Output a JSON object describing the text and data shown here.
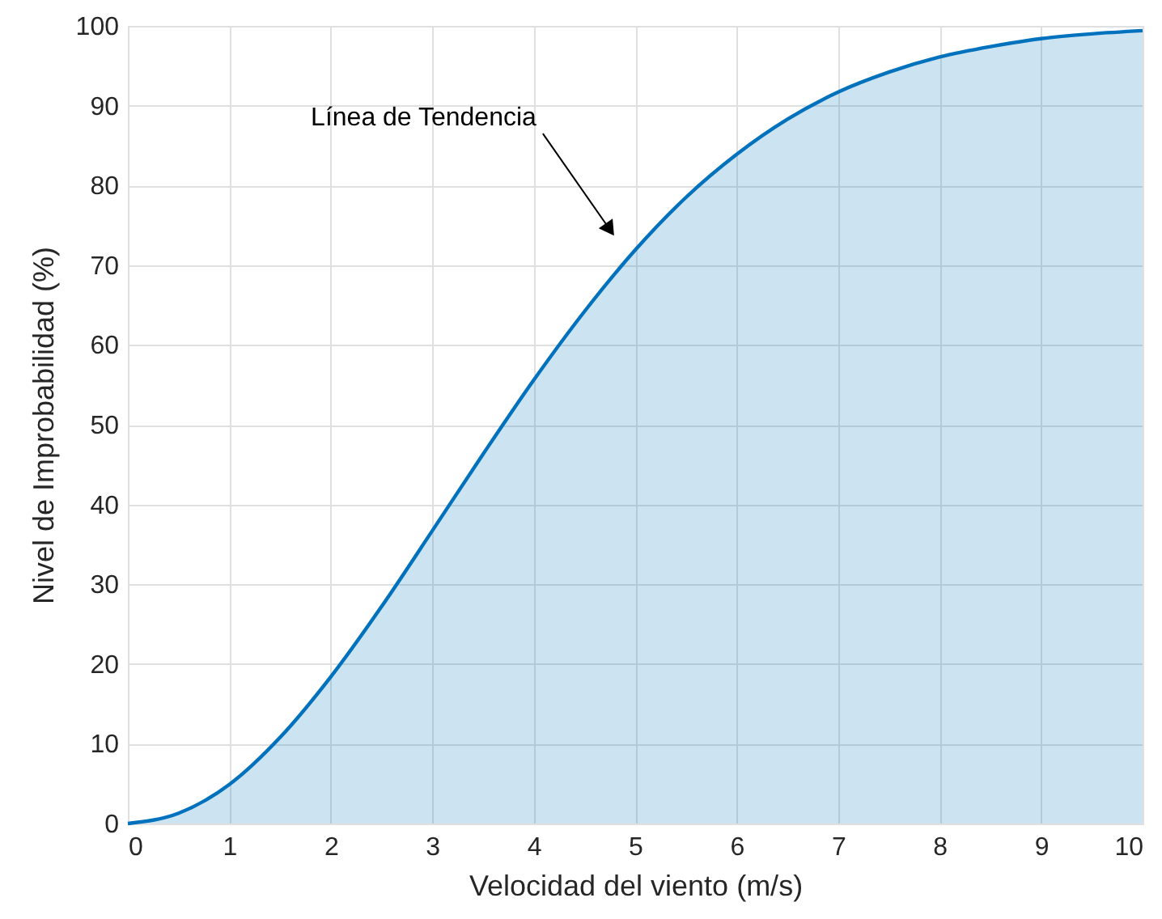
{
  "chart_data": {
    "type": "area",
    "xlabel": "Velocidad del viento (m/s)",
    "ylabel": "Nivel de Improbabilidad (%)",
    "x": [
      0,
      0.5,
      1,
      1.5,
      2,
      2.5,
      3,
      3.5,
      4,
      4.5,
      5,
      5.5,
      6,
      6.5,
      7,
      7.5,
      8,
      8.5,
      9,
      9.5,
      10
    ],
    "series": [
      {
        "color": "#0072bd",
        "values": [
          0,
          1.3,
          4.9,
          10.8,
          18.4,
          27.2,
          36.7,
          46.3,
          55.6,
          64.2,
          71.9,
          78.5,
          83.9,
          88.3,
          91.7,
          94.2,
          96.1,
          97.4,
          98.4,
          99.0,
          99.4
        ]
      }
    ],
    "xlim": [
      0,
      10
    ],
    "xticks": [
      0,
      1,
      2,
      3,
      4,
      5,
      6,
      7,
      8,
      9,
      10
    ],
    "ylim": [
      0,
      100
    ],
    "yticks": [
      0,
      10,
      20,
      30,
      40,
      50,
      60,
      70,
      80,
      90,
      100
    ],
    "grid": true,
    "annotations": [
      "Línea de Tendencia"
    ]
  }
}
